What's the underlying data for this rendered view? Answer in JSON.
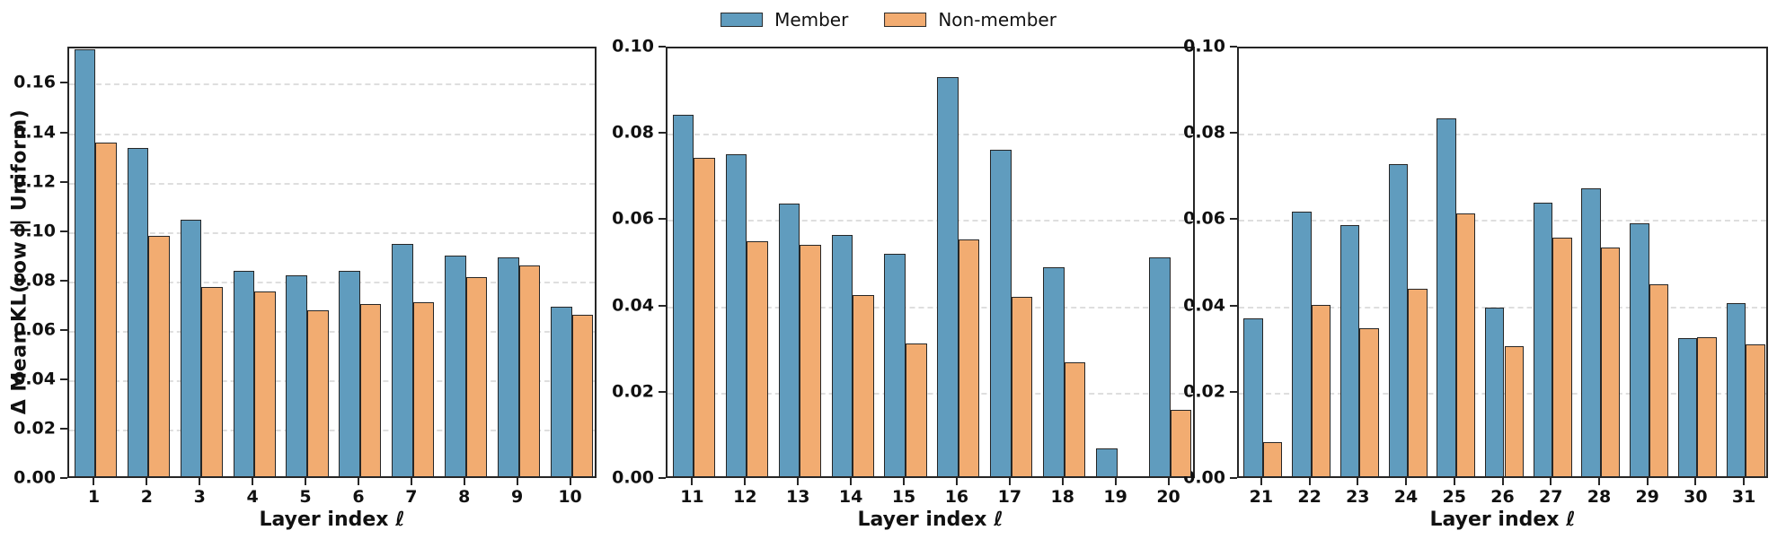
{
  "legend": {
    "items": [
      {
        "label": "Member",
        "color": "#609CBE"
      },
      {
        "label": "Non-member",
        "color": "#F2AC71"
      }
    ]
  },
  "axes": {
    "ylabel": "Δ Mean KL(row || Uniform)",
    "xlabel": "Layer index ℓ"
  },
  "style": {
    "bar_edge_color": "#262626",
    "spine_color": "#262626",
    "grid_color": "#dedede"
  },
  "chart_data": [
    {
      "type": "bar",
      "title": "",
      "xlabel": "Layer index ℓ",
      "ylabel": "Δ Mean KL(row || Uniform)",
      "categories": [
        "1",
        "2",
        "3",
        "4",
        "5",
        "6",
        "7",
        "8",
        "9",
        "10"
      ],
      "series": [
        {
          "name": "Member",
          "values": [
            0.173,
            0.133,
            0.104,
            0.083,
            0.0815,
            0.083,
            0.094,
            0.0893,
            0.0885,
            0.0685
          ]
        },
        {
          "name": "Non-member",
          "values": [
            0.135,
            0.0975,
            0.0765,
            0.0748,
            0.0672,
            0.0698,
            0.0703,
            0.0805,
            0.0855,
            0.0655
          ]
        }
      ],
      "ylim": [
        0,
        0.1747
      ],
      "yticks": [
        0,
        0.02,
        0.04,
        0.06,
        0.08,
        0.1,
        0.12,
        0.14,
        0.16
      ],
      "grid": true,
      "legend_position": "top-center"
    },
    {
      "type": "bar",
      "title": "",
      "xlabel": "Layer index ℓ",
      "ylabel": "",
      "categories": [
        "11",
        "12",
        "13",
        "14",
        "15",
        "16",
        "17",
        "18",
        "19",
        "20"
      ],
      "series": [
        {
          "name": "Member",
          "values": [
            0.0837,
            0.0747,
            0.0632,
            0.056,
            0.0515,
            0.0925,
            0.0757,
            0.0485,
            0.0065,
            0.0508
          ]
        },
        {
          "name": "Non-member",
          "values": [
            0.0738,
            0.0544,
            0.0536,
            0.0419,
            0.0308,
            0.0548,
            0.0415,
            0.0265,
            0.0,
            0.0153
          ]
        }
      ],
      "ylim": [
        0,
        0.1
      ],
      "yticks": [
        0,
        0.02,
        0.04,
        0.06,
        0.08,
        0.1
      ],
      "grid": true,
      "legend_position": "none"
    },
    {
      "type": "bar",
      "title": "",
      "xlabel": "Layer index ℓ",
      "ylabel": "",
      "categories": [
        "21",
        "22",
        "23",
        "24",
        "25",
        "26",
        "27",
        "28",
        "29",
        "30",
        "31"
      ],
      "series": [
        {
          "name": "Member",
          "values": [
            0.0366,
            0.0614,
            0.0583,
            0.0723,
            0.083,
            0.039,
            0.0635,
            0.0667,
            0.0586,
            0.032,
            0.0401
          ]
        },
        {
          "name": "Non-member",
          "values": [
            0.008,
            0.0398,
            0.0344,
            0.0435,
            0.0609,
            0.0302,
            0.0554,
            0.053,
            0.0444,
            0.0322,
            0.0306
          ]
        }
      ],
      "ylim": [
        0,
        0.1
      ],
      "yticks": [
        0,
        0.02,
        0.04,
        0.06,
        0.08,
        0.1
      ],
      "grid": true,
      "legend_position": "none"
    }
  ]
}
